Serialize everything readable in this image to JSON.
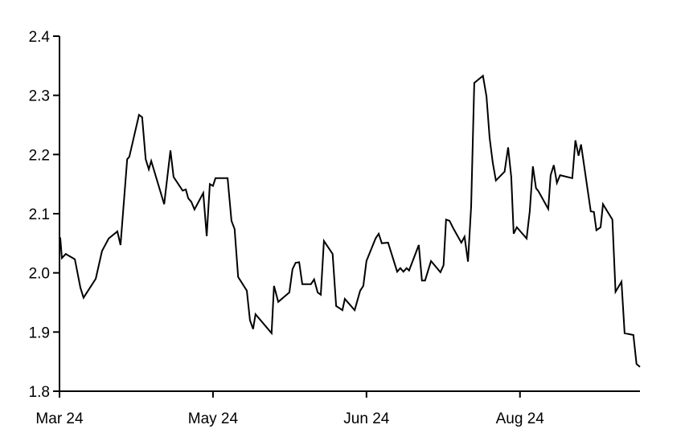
{
  "chart_data": {
    "type": "line",
    "title": "",
    "xlabel": "",
    "ylabel": "",
    "ylim": [
      1.8,
      2.4
    ],
    "yticks": [
      1.8,
      1.9,
      2.0,
      2.1,
      2.2,
      2.3,
      2.4
    ],
    "ytick_labels": [
      "1.8",
      "1.9",
      "2.0",
      "2.1",
      "2.2",
      "2.3",
      "2.4"
    ],
    "xlim": [
      0,
      166.4
    ],
    "xticks": [
      {
        "x": 0,
        "label": "Mar 24"
      },
      {
        "x": 44,
        "label": "May 24"
      },
      {
        "x": 88,
        "label": "Jun 24"
      },
      {
        "x": 132,
        "label": "Aug 24"
      }
    ],
    "grid": false,
    "legend": "none",
    "line_color": "#000000",
    "series": [
      {
        "points": [
          [
            0.2,
            2.06
          ],
          [
            0.7,
            2.025
          ],
          [
            1.8,
            2.032
          ],
          [
            4.4,
            2.023
          ],
          [
            6.0,
            1.975
          ],
          [
            6.9,
            1.958
          ],
          [
            10.4,
            1.99
          ],
          [
            12.2,
            2.037
          ],
          [
            14.1,
            2.058
          ],
          [
            16.6,
            2.07
          ],
          [
            17.5,
            2.047
          ],
          [
            19.4,
            2.192
          ],
          [
            20.0,
            2.196
          ],
          [
            22.8,
            2.267
          ],
          [
            23.7,
            2.263
          ],
          [
            24.7,
            2.192
          ],
          [
            25.6,
            2.175
          ],
          [
            26.3,
            2.189
          ],
          [
            30.0,
            2.116
          ],
          [
            31.8,
            2.207
          ],
          [
            32.7,
            2.162
          ],
          [
            35.3,
            2.139
          ],
          [
            36.2,
            2.141
          ],
          [
            36.9,
            2.126
          ],
          [
            37.8,
            2.12
          ],
          [
            38.7,
            2.107
          ],
          [
            41.2,
            2.135
          ],
          [
            42.2,
            2.062
          ],
          [
            43.1,
            2.15
          ],
          [
            44.0,
            2.147
          ],
          [
            44.7,
            2.16
          ],
          [
            48.2,
            2.16
          ],
          [
            49.3,
            2.088
          ],
          [
            50.2,
            2.074
          ],
          [
            51.2,
            1.993
          ],
          [
            53.7,
            1.97
          ],
          [
            54.6,
            1.92
          ],
          [
            55.5,
            1.905
          ],
          [
            56.2,
            1.93
          ],
          [
            60.8,
            1.898
          ],
          [
            61.5,
            1.978
          ],
          [
            62.7,
            1.951
          ],
          [
            65.9,
            1.967
          ],
          [
            66.8,
            2.006
          ],
          [
            67.7,
            2.017
          ],
          [
            68.7,
            2.018
          ],
          [
            69.6,
            1.981
          ],
          [
            72.1,
            1.981
          ],
          [
            73.0,
            1.989
          ],
          [
            74.0,
            1.967
          ],
          [
            74.9,
            1.963
          ],
          [
            75.8,
            2.054
          ],
          [
            78.3,
            2.032
          ],
          [
            79.3,
            1.944
          ],
          [
            81.1,
            1.937
          ],
          [
            81.8,
            1.956
          ],
          [
            84.6,
            1.937
          ],
          [
            86.2,
            1.97
          ],
          [
            87.1,
            1.978
          ],
          [
            88.0,
            2.02
          ],
          [
            90.6,
            2.058
          ],
          [
            91.5,
            2.066
          ],
          [
            92.4,
            2.05
          ],
          [
            94.2,
            2.051
          ],
          [
            96.8,
            2.002
          ],
          [
            97.7,
            2.008
          ],
          [
            98.6,
            2.002
          ],
          [
            99.5,
            2.008
          ],
          [
            100.2,
            2.004
          ],
          [
            103.0,
            2.047
          ],
          [
            103.9,
            1.987
          ],
          [
            104.8,
            1.987
          ],
          [
            106.5,
            2.02
          ],
          [
            109.2,
            2.001
          ],
          [
            110.1,
            2.013
          ],
          [
            110.8,
            2.09
          ],
          [
            111.8,
            2.088
          ],
          [
            112.9,
            2.075
          ],
          [
            115.2,
            2.051
          ],
          [
            116.1,
            2.061
          ],
          [
            117.1,
            2.019
          ],
          [
            118.0,
            2.112
          ],
          [
            118.9,
            2.321
          ],
          [
            121.4,
            2.333
          ],
          [
            122.4,
            2.298
          ],
          [
            123.3,
            2.228
          ],
          [
            124.2,
            2.186
          ],
          [
            125.1,
            2.156
          ],
          [
            127.6,
            2.171
          ],
          [
            128.6,
            2.212
          ],
          [
            129.5,
            2.162
          ],
          [
            130.2,
            2.066
          ],
          [
            131.1,
            2.077
          ],
          [
            133.9,
            2.058
          ],
          [
            134.8,
            2.104
          ],
          [
            135.7,
            2.18
          ],
          [
            136.6,
            2.143
          ],
          [
            137.3,
            2.138
          ],
          [
            140.1,
            2.108
          ],
          [
            140.8,
            2.165
          ],
          [
            141.7,
            2.182
          ],
          [
            142.6,
            2.152
          ],
          [
            143.5,
            2.165
          ],
          [
            147.0,
            2.16
          ],
          [
            147.9,
            2.224
          ],
          [
            148.8,
            2.198
          ],
          [
            149.5,
            2.217
          ],
          [
            152.3,
            2.104
          ],
          [
            153.2,
            2.103
          ],
          [
            153.9,
            2.072
          ],
          [
            155.1,
            2.077
          ],
          [
            155.8,
            2.116
          ],
          [
            158.5,
            2.09
          ],
          [
            159.4,
            1.968
          ],
          [
            161.1,
            1.985
          ],
          [
            162.0,
            1.898
          ],
          [
            164.5,
            1.895
          ],
          [
            165.4,
            1.846
          ],
          [
            166.4,
            1.841
          ]
        ]
      }
    ]
  }
}
